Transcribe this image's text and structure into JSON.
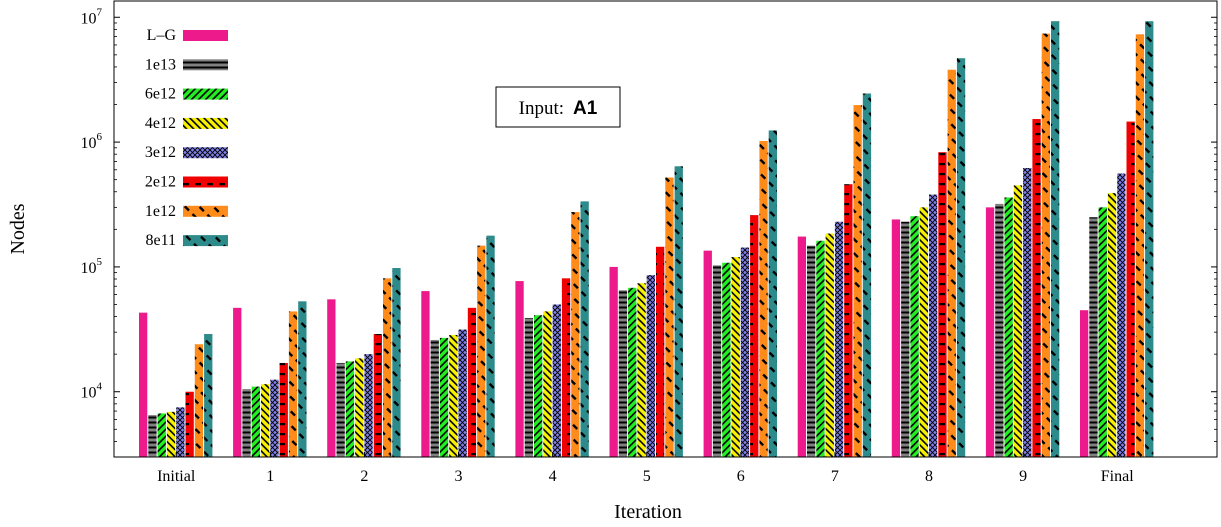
{
  "chart_data": {
    "type": "bar",
    "xlabel": "Iteration",
    "ylabel": "Nodes",
    "yscale": "log",
    "ylim": [
      3000,
      13500000
    ],
    "yticks": [
      {
        "value": 10000,
        "base": "10",
        "exp": "4"
      },
      {
        "value": 100000,
        "base": "10",
        "exp": "5"
      },
      {
        "value": 1000000,
        "base": "10",
        "exp": "6"
      },
      {
        "value": 10000000,
        "base": "10",
        "exp": "7"
      }
    ],
    "categories": [
      "Initial",
      "1",
      "2",
      "3",
      "4",
      "5",
      "6",
      "7",
      "8",
      "9",
      "Final"
    ],
    "legend_position": "top-left",
    "annotation": {
      "label": "Input:",
      "value": "A1"
    },
    "series": [
      {
        "name": "L–G",
        "color": "#ec1a8a",
        "pattern": "solid",
        "values": [
          43000,
          47000,
          55000,
          64000,
          77000,
          100000,
          135000,
          175000,
          240000,
          300000,
          45000
        ]
      },
      {
        "name": "1e13",
        "color": "#808080",
        "pattern": "hlines",
        "values": [
          6500,
          10500,
          17000,
          26000,
          39000,
          65000,
          103000,
          148000,
          230000,
          320000,
          250000
        ]
      },
      {
        "name": "6e12",
        "color": "#22ee22",
        "pattern": "diagonal",
        "values": [
          6700,
          11000,
          17500,
          27000,
          41000,
          68000,
          108000,
          162000,
          255000,
          360000,
          300000
        ]
      },
      {
        "name": "4e12",
        "color": "#f7f000",
        "pattern": "antidiagonal",
        "values": [
          6900,
          11500,
          18500,
          28500,
          44000,
          74000,
          120000,
          185000,
          300000,
          450000,
          390000
        ]
      },
      {
        "name": "3e12",
        "color": "#8080e6",
        "pattern": "crosshatch",
        "values": [
          7500,
          12500,
          20000,
          31500,
          50000,
          86000,
          143000,
          230000,
          380000,
          620000,
          560000
        ]
      },
      {
        "name": "2e12",
        "color": "#f00000",
        "pattern": "dashh",
        "values": [
          10000,
          17000,
          29000,
          47000,
          81000,
          145000,
          260000,
          460000,
          830000,
          1530000,
          1460000
        ]
      },
      {
        "name": "1e12",
        "color": "#ff8c1a",
        "pattern": "dashd",
        "values": [
          24000,
          44000,
          81000,
          148000,
          275000,
          520000,
          1020000,
          1980000,
          3800000,
          7400000,
          7300000
        ]
      },
      {
        "name": "8e11",
        "color": "#2e8b8b",
        "pattern": "dashd",
        "values": [
          29000,
          53000,
          98000,
          178000,
          335000,
          640000,
          1240000,
          2450000,
          4700000,
          9300000,
          9300000
        ]
      }
    ]
  }
}
